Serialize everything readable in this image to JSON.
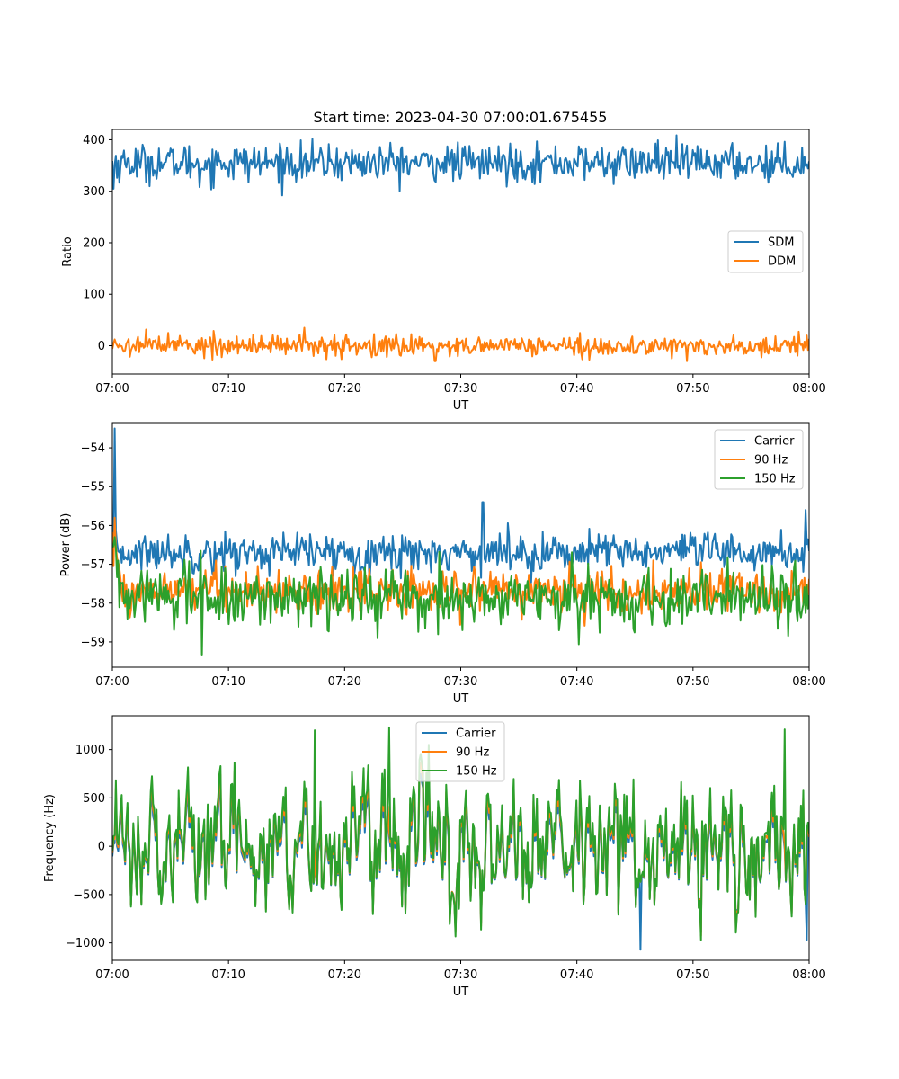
{
  "chart_data": [
    {
      "type": "line",
      "title": "Start time: 2023-04-30 07:00:01.675455",
      "xlabel": "UT",
      "ylabel": "Ratio",
      "x_ticks": [
        "07:00",
        "07:10",
        "07:20",
        "07:30",
        "07:40",
        "07:50",
        "08:00"
      ],
      "xlim_minutes": [
        0,
        60
      ],
      "ylim": [
        -55,
        420
      ],
      "y_ticks": [
        0,
        100,
        200,
        300,
        400
      ],
      "y_tick_labels": [
        "0",
        "100",
        "200",
        "300",
        "400"
      ],
      "legend_position": "center-right",
      "grid": false,
      "series": [
        {
          "name": "SDM",
          "color": "#1f77b4",
          "approx_mean": 355,
          "approx_amplitude": 18,
          "key_points": [
            [
              0.1,
              305
            ],
            [
              7.5,
              308
            ],
            [
              10.5,
              380
            ],
            [
              47,
              399
            ]
          ]
        },
        {
          "name": "DDM",
          "color": "#ff7f0e",
          "approx_mean": 0,
          "approx_amplitude": 10,
          "key_points": [
            [
              4.8,
              25
            ],
            [
              27.8,
              -30
            ],
            [
              40.3,
              25
            ],
            [
              49.5,
              -30
            ],
            [
              59.8,
              20
            ]
          ]
        }
      ]
    },
    {
      "type": "line",
      "title": "",
      "xlabel": "UT",
      "ylabel": "Power (dB)",
      "x_ticks": [
        "07:00",
        "07:10",
        "07:20",
        "07:30",
        "07:40",
        "07:50",
        "08:00"
      ],
      "xlim_minutes": [
        0,
        60
      ],
      "ylim": [
        -59.65,
        -53.35
      ],
      "y_ticks": [
        -59,
        -58,
        -57,
        -56,
        -55,
        -54
      ],
      "y_tick_labels": [
        "−59",
        "−58",
        "−57",
        "−56",
        "−55",
        "−54"
      ],
      "legend_position": "top-right",
      "grid": false,
      "series": [
        {
          "name": "Carrier",
          "color": "#1f77b4",
          "approx_mean": -56.7,
          "approx_amplitude": 0.25,
          "key_points": [
            [
              0.2,
              -53.5
            ],
            [
              31.9,
              -55.4
            ],
            [
              59.7,
              -55.6
            ]
          ]
        },
        {
          "name": "90 Hz",
          "color": "#ff7f0e",
          "approx_mean": -57.7,
          "approx_amplitude": 0.3,
          "key_points": [
            [
              0.2,
              -55.8
            ],
            [
              46.6,
              -56.9
            ]
          ]
        },
        {
          "name": "150 Hz",
          "color": "#2ca02c",
          "approx_mean": -57.85,
          "approx_amplitude": 0.35,
          "key_points": [
            [
              7.7,
              -59.35
            ],
            [
              0.2,
              -56.3
            ]
          ]
        }
      ]
    },
    {
      "type": "line",
      "title": "",
      "xlabel": "UT",
      "ylabel": "Frequency (Hz)",
      "x_ticks": [
        "07:00",
        "07:10",
        "07:20",
        "07:30",
        "07:40",
        "07:50",
        "08:00"
      ],
      "xlim_minutes": [
        0,
        60
      ],
      "ylim": [
        -1180,
        1350
      ],
      "y_ticks": [
        -1000,
        -500,
        0,
        500,
        1000
      ],
      "y_tick_labels": [
        "−1000",
        "−500",
        "0",
        "500",
        "1000"
      ],
      "legend_position": "top-center",
      "grid": false,
      "series": [
        {
          "name": "Carrier",
          "color": "#1f77b4",
          "approx_mean": -40,
          "approx_amplitude": 300,
          "key_points": [
            [
              45.5,
              -1070
            ],
            [
              59.8,
              -970
            ]
          ]
        },
        {
          "name": "90 Hz",
          "color": "#ff7f0e",
          "approx_mean": 0,
          "approx_amplitude": 320
        },
        {
          "name": "150 Hz",
          "color": "#2ca02c",
          "approx_mean": 30,
          "approx_amplitude": 330,
          "key_points": [
            [
              23.8,
              1230
            ],
            [
              17.4,
              1200
            ],
            [
              57.9,
              1210
            ]
          ]
        }
      ]
    }
  ]
}
